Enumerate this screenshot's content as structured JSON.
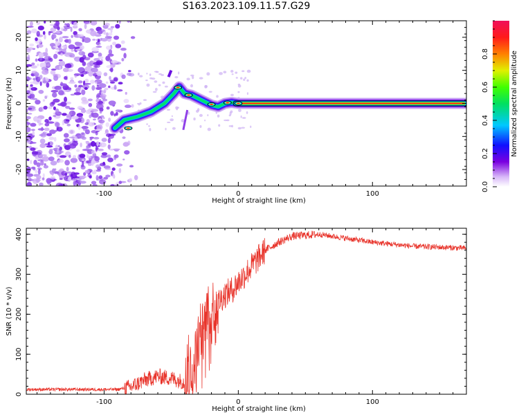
{
  "title": "S163.2023.109.11.57.G29",
  "chart_data": [
    {
      "type": "heatmap",
      "name": "spectrogram",
      "xlabel": "Height of straight line (km)",
      "ylabel": "Frequency (Hz)",
      "xlim": [
        -158,
        170
      ],
      "ylim": [
        -25,
        25
      ],
      "xticks": [
        -100,
        0,
        100
      ],
      "yticks": [
        -20,
        -10,
        0,
        10,
        20
      ],
      "colorbar": {
        "label": "Normalized spectral amplitude",
        "range": [
          0,
          1
        ],
        "ticks": [
          0.0,
          0.2,
          0.4,
          0.6,
          0.8
        ]
      },
      "ridge": {
        "description_points_x": [
          -92,
          -85,
          -75,
          -65,
          -55,
          -48,
          -44,
          -40,
          -35,
          -30,
          -25,
          -20,
          -15,
          -10,
          -5,
          0,
          20,
          50,
          100,
          170
        ],
        "description_points_y": [
          -7.5,
          -5,
          -4,
          -2.5,
          0,
          3,
          5,
          3,
          2.5,
          1.5,
          0.5,
          -0.5,
          -1,
          0,
          0.3,
          0,
          0,
          0,
          0,
          0
        ]
      }
    },
    {
      "type": "line",
      "name": "snr",
      "xlabel": "Height of straight line (km)",
      "ylabel": "SNR (10 * v/v)",
      "xlim": [
        -158,
        170
      ],
      "ylim": [
        0,
        415
      ],
      "xticks": [
        -100,
        0,
        100
      ],
      "yticks": [
        0,
        100,
        200,
        300,
        400
      ],
      "color": "#e8332a",
      "envelope_x": [
        -158,
        -90,
        -80,
        -70,
        -60,
        -50,
        -40,
        -35,
        -30,
        -25,
        -20,
        -15,
        -10,
        -5,
        0,
        10,
        20,
        30,
        40,
        60,
        80,
        100,
        130,
        170
      ],
      "envelope_y": [
        12,
        12,
        18,
        35,
        45,
        40,
        30,
        60,
        120,
        180,
        220,
        230,
        250,
        260,
        280,
        320,
        360,
        380,
        395,
        400,
        390,
        380,
        370,
        365
      ]
    }
  ]
}
